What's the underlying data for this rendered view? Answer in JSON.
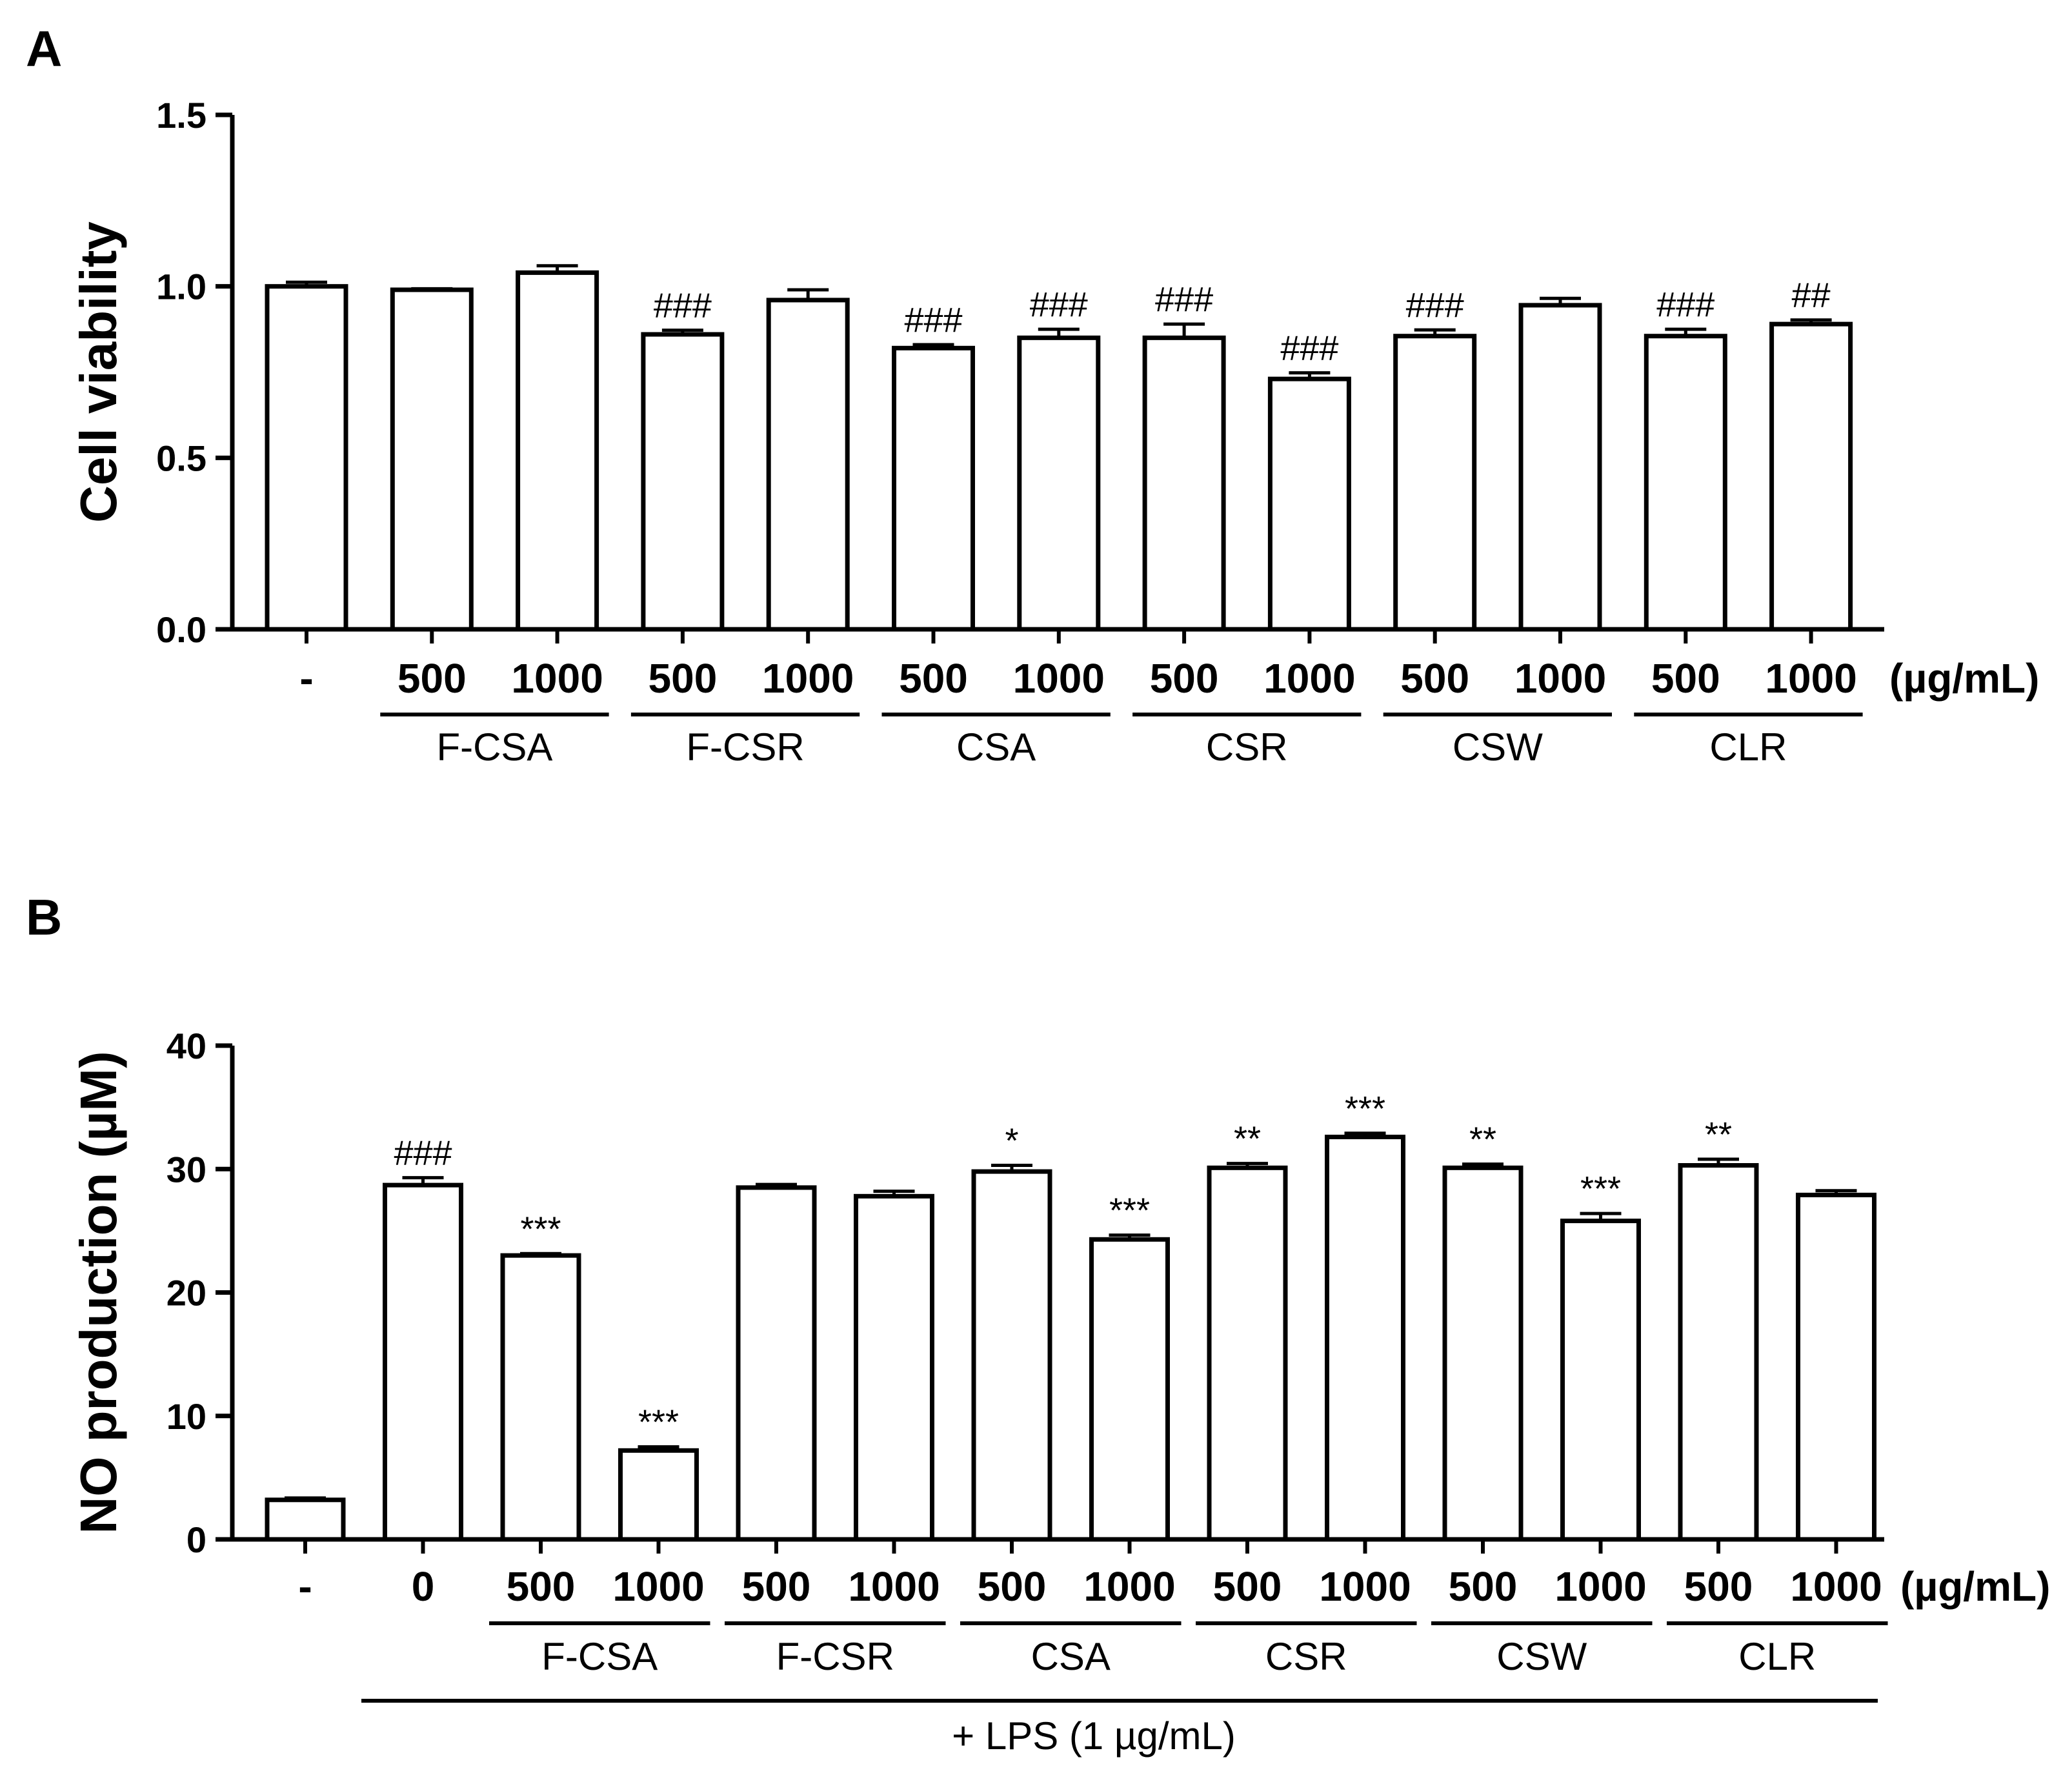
{
  "chart_data": [
    {
      "panel": "A",
      "type": "bar",
      "ylabel": "Cell viability",
      "ylim": [
        0,
        1.5
      ],
      "yticks": [
        "0.0",
        "0.5",
        "1.0",
        "1.5"
      ],
      "unit_label": "(µg/mL)",
      "categories": [
        "-",
        "500",
        "1000",
        "500",
        "1000",
        "500",
        "1000",
        "500",
        "1000",
        "500",
        "1000",
        "500",
        "1000"
      ],
      "values": [
        1.0,
        0.99,
        1.04,
        0.86,
        0.96,
        0.82,
        0.85,
        0.85,
        0.73,
        0.855,
        0.945,
        0.855,
        0.89
      ],
      "errors": [
        0.012,
        0.003,
        0.02,
        0.012,
        0.03,
        0.01,
        0.025,
        0.04,
        0.018,
        0.018,
        0.02,
        0.02,
        0.012
      ],
      "annotations": [
        "",
        "",
        "",
        "###",
        "",
        "###",
        "###",
        "###",
        "###",
        "###",
        "",
        "###",
        "##"
      ],
      "groups": [
        {
          "label": "F-CSA",
          "from": 1,
          "to": 2
        },
        {
          "label": "F-CSR",
          "from": 3,
          "to": 4
        },
        {
          "label": "CSA",
          "from": 5,
          "to": 6
        },
        {
          "label": "CSR",
          "from": 7,
          "to": 8
        },
        {
          "label": "CSW",
          "from": 9,
          "to": 10
        },
        {
          "label": "CLR",
          "from": 11,
          "to": 12
        }
      ]
    },
    {
      "panel": "B",
      "type": "bar",
      "ylabel": "NO production (µM)",
      "ylim": [
        0,
        40
      ],
      "yticks": [
        "0",
        "10",
        "20",
        "30",
        "40"
      ],
      "unit_label": "(µg/mL)",
      "categories": [
        "-",
        "0",
        "500",
        "1000",
        "500",
        "1000",
        "500",
        "1000",
        "500",
        "1000",
        "500",
        "1000",
        "500",
        "1000"
      ],
      "values": [
        3.2,
        28.7,
        23.0,
        7.2,
        28.5,
        27.8,
        29.8,
        24.3,
        30.1,
        32.6,
        30.1,
        25.8,
        30.3,
        27.9
      ],
      "errors": [
        0.15,
        0.6,
        0.15,
        0.3,
        0.25,
        0.4,
        0.5,
        0.35,
        0.35,
        0.3,
        0.3,
        0.6,
        0.5,
        0.35
      ],
      "annotations": [
        "",
        "###",
        "***",
        "***",
        "",
        "",
        "*",
        "***",
        "**",
        "***",
        "**",
        "***",
        "**",
        ""
      ],
      "groups": [
        {
          "label": "F-CSA",
          "from": 2,
          "to": 3
        },
        {
          "label": "F-CSR",
          "from": 4,
          "to": 5
        },
        {
          "label": "CSA",
          "from": 6,
          "to": 7
        },
        {
          "label": "CSR",
          "from": 8,
          "to": 9
        },
        {
          "label": "CSW",
          "from": 10,
          "to": 11
        },
        {
          "label": "CLR",
          "from": 12,
          "to": 13
        }
      ],
      "bottom_bracket_label": "+ LPS (1 µg/mL)"
    }
  ]
}
